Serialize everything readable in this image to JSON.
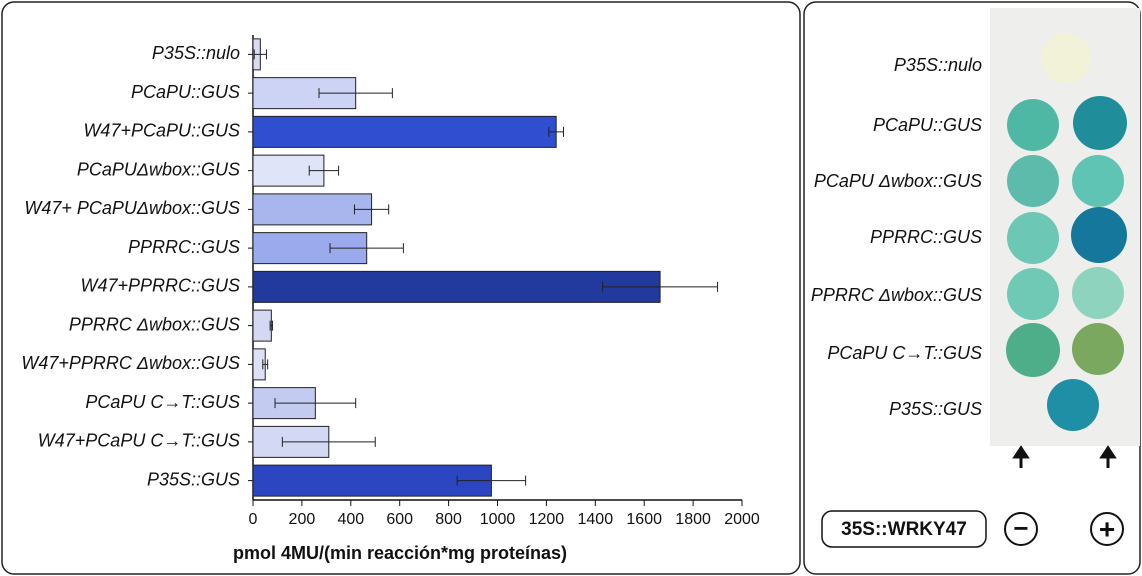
{
  "chart_data": {
    "type": "bar",
    "orientation": "horizontal",
    "xlabel": "pmol 4MU/(min reacción*mg proteínas)",
    "categories": [
      "P35S::nulo",
      "PCaPU::GUS",
      "W47+PCaPU::GUS",
      "PCaPUΔwbox::GUS",
      "W47+ PCaPUΔwbox::GUS",
      "PPRRC::GUS",
      "W47+PPRRC::GUS",
      "PPRRC Δwbox::GUS",
      "W47+PPRRC Δwbox::GUS",
      "PCaPU C→T::GUS",
      "W47+PCaPU C→T::GUS",
      "P35S::GUS"
    ],
    "values": [
      30,
      420,
      1240,
      290,
      485,
      465,
      1665,
      75,
      50,
      255,
      310,
      975
    ],
    "errors": [
      25,
      150,
      30,
      60,
      70,
      150,
      235,
      5,
      10,
      165,
      190,
      140
    ],
    "colors": [
      "#d9dcf5",
      "#cdd3f5",
      "#2f4fd0",
      "#dfe4f8",
      "#a9b6ee",
      "#9aaaec",
      "#22399e",
      "#d4d8f3",
      "#dde1f6",
      "#c3cbf1",
      "#d3d8f4",
      "#2c45c0"
    ],
    "xlim": [
      0,
      2000
    ],
    "xticks": [
      0,
      200,
      400,
      600,
      800,
      1000,
      1200,
      1400,
      1600,
      1800,
      2000
    ]
  },
  "image_panel": {
    "labels": [
      "P35S::nulo",
      "PCaPU::GUS",
      "PCaPU Δwbox::GUS",
      "PPRRC::GUS",
      "PPRRC Δwbox::GUS",
      "PCaPU C→T::GUS",
      "P35S::GUS"
    ],
    "construct": "35S::WRKY47",
    "minus": "−",
    "plus": "+"
  }
}
